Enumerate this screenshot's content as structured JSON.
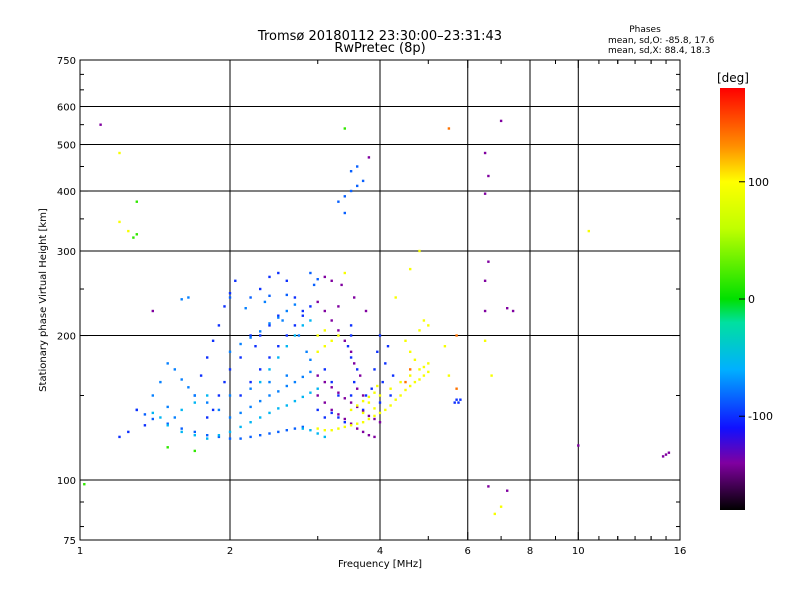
{
  "chart_data": {
    "type": "scatter",
    "title": "Tromsø 20180112 23:30:00–23:31:43",
    "subtitle": "RwPretec (8p)",
    "phases": {
      "header": "Phases",
      "line_o": "mean, sd,O: -85.8, 17.6",
      "line_x": "mean, sd,X:  88.4, 18.3"
    },
    "xlabel": "Frequency [MHz]",
    "ylabel": "Stationary phase Virtual Height [km]",
    "x_scale": "log",
    "y_scale": "log",
    "xlim": [
      1,
      16
    ],
    "ylim": [
      75,
      750
    ],
    "x_ticks": [
      1,
      2,
      4,
      6,
      8,
      10,
      16
    ],
    "x_minor": [
      3,
      5,
      7,
      9,
      12,
      14
    ],
    "y_ticks": [
      75,
      100,
      200,
      300,
      400,
      500,
      600,
      750
    ],
    "grid": true,
    "colorbar": {
      "label": "[deg]",
      "range": [
        -180,
        180
      ],
      "ticks": [
        100,
        0,
        -100
      ]
    },
    "colorscale": [
      [
        -180,
        "#000000"
      ],
      [
        -140,
        "#8000a0"
      ],
      [
        -110,
        "#1010ff"
      ],
      [
        -60,
        "#00b0ff"
      ],
      [
        -20,
        "#00e0a0"
      ],
      [
        0,
        "#00e000"
      ],
      [
        60,
        "#c0ff00"
      ],
      [
        100,
        "#ffff00"
      ],
      [
        130,
        "#ff9000"
      ],
      [
        180,
        "#ff0000"
      ]
    ],
    "series": [
      {
        "color_deg": -85,
        "points": [
          [
            2.0,
            122
          ],
          [
            2.1,
            122
          ],
          [
            2.2,
            123
          ],
          [
            2.3,
            124
          ],
          [
            2.4,
            125
          ],
          [
            2.5,
            126
          ],
          [
            2.6,
            127
          ],
          [
            2.7,
            128
          ],
          [
            2.8,
            129
          ],
          [
            1.9,
            123
          ],
          [
            1.8,
            124
          ],
          [
            1.7,
            126
          ],
          [
            1.6,
            128
          ],
          [
            1.5,
            131
          ],
          [
            1.4,
            134
          ],
          [
            1.35,
            137
          ],
          [
            1.3,
            140
          ],
          [
            2.0,
            240
          ],
          [
            2.2,
            240
          ],
          [
            2.4,
            242
          ],
          [
            2.6,
            243
          ],
          [
            2.9,
            270
          ],
          [
            3.0,
            262
          ],
          [
            2.95,
            255
          ],
          [
            3.4,
            390
          ],
          [
            3.5,
            400
          ],
          [
            3.6,
            410
          ],
          [
            3.7,
            420
          ],
          [
            3.4,
            360
          ],
          [
            3.3,
            380
          ],
          [
            3.5,
            440
          ],
          [
            3.6,
            450
          ]
        ]
      },
      {
        "color_deg": -100,
        "points": [
          [
            2.1,
            150
          ],
          [
            2.2,
            160
          ],
          [
            2.3,
            170
          ],
          [
            2.4,
            180
          ],
          [
            2.5,
            190
          ],
          [
            2.6,
            200
          ],
          [
            2.7,
            210
          ],
          [
            2.8,
            220
          ],
          [
            2.9,
            230
          ],
          [
            2.2,
            200
          ],
          [
            2.25,
            190
          ],
          [
            2.3,
            200
          ],
          [
            2.4,
            210
          ],
          [
            2.5,
            220
          ],
          [
            2.1,
            180
          ],
          [
            2.0,
            170
          ],
          [
            1.95,
            160
          ],
          [
            1.9,
            150
          ],
          [
            1.85,
            140
          ],
          [
            1.8,
            135
          ],
          [
            1.7,
            150
          ],
          [
            1.75,
            165
          ],
          [
            1.8,
            180
          ],
          [
            1.85,
            195
          ],
          [
            1.9,
            210
          ],
          [
            1.95,
            230
          ],
          [
            2.0,
            245
          ],
          [
            2.05,
            260
          ],
          [
            2.3,
            250
          ],
          [
            2.4,
            265
          ],
          [
            2.5,
            270
          ],
          [
            2.6,
            260
          ],
          [
            2.7,
            240
          ],
          [
            2.8,
            225
          ],
          [
            1.3,
            140
          ],
          [
            1.35,
            130
          ],
          [
            1.25,
            126
          ],
          [
            1.2,
            123
          ],
          [
            3.5,
            150
          ],
          [
            3.55,
            160
          ],
          [
            3.6,
            170
          ],
          [
            3.5,
            180
          ],
          [
            3.45,
            190
          ],
          [
            3.5,
            200
          ],
          [
            3.5,
            210
          ],
          [
            3.0,
            140
          ],
          [
            3.1,
            135
          ],
          [
            3.2,
            138
          ],
          [
            3.3,
            135
          ],
          [
            3.4,
            132
          ],
          [
            3.3,
            150
          ],
          [
            3.2,
            160
          ],
          [
            3.1,
            170
          ],
          [
            4.0,
            145
          ],
          [
            4.05,
            160
          ],
          [
            4.1,
            175
          ],
          [
            4.15,
            190
          ],
          [
            3.9,
            170
          ],
          [
            3.95,
            185
          ],
          [
            4.0,
            200
          ],
          [
            3.85,
            155
          ],
          [
            3.7,
            140
          ],
          [
            3.75,
            150
          ],
          [
            4.2,
            150
          ],
          [
            4.25,
            165
          ],
          [
            5.7,
            147
          ],
          [
            5.75,
            145
          ],
          [
            5.8,
            147
          ],
          [
            5.65,
            145
          ]
        ]
      },
      {
        "color_deg": -75,
        "points": [
          [
            2.0,
            135
          ],
          [
            2.1,
            138
          ],
          [
            2.2,
            142
          ],
          [
            2.3,
            146
          ],
          [
            2.4,
            150
          ],
          [
            2.5,
            153
          ],
          [
            2.6,
            157
          ],
          [
            2.7,
            160
          ],
          [
            2.8,
            164
          ],
          [
            2.9,
            168
          ],
          [
            1.9,
            140
          ],
          [
            1.8,
            145
          ],
          [
            1.7,
            150
          ],
          [
            1.65,
            156
          ],
          [
            1.6,
            162
          ],
          [
            1.55,
            170
          ],
          [
            1.5,
            175
          ],
          [
            2.0,
            185
          ],
          [
            2.1,
            192
          ],
          [
            2.2,
            198
          ],
          [
            2.3,
            204
          ],
          [
            2.4,
            212
          ],
          [
            2.5,
            218
          ],
          [
            2.6,
            225
          ],
          [
            2.7,
            232
          ],
          [
            1.6,
            238
          ],
          [
            1.65,
            240
          ],
          [
            2.15,
            228
          ],
          [
            2.35,
            235
          ],
          [
            2.55,
            215
          ],
          [
            2.75,
            200
          ],
          [
            2.85,
            185
          ],
          [
            2.9,
            178
          ],
          [
            2.0,
            150
          ],
          [
            2.2,
            155
          ],
          [
            2.4,
            160
          ],
          [
            2.6,
            165
          ],
          [
            1.4,
            150
          ],
          [
            1.45,
            160
          ],
          [
            1.5,
            142
          ],
          [
            1.55,
            135
          ]
        ]
      },
      {
        "color_deg": -55,
        "points": [
          [
            1.8,
            122
          ],
          [
            1.9,
            124
          ],
          [
            2.0,
            126
          ],
          [
            2.1,
            129
          ],
          [
            2.2,
            132
          ],
          [
            2.3,
            135
          ],
          [
            2.4,
            138
          ],
          [
            2.5,
            141
          ],
          [
            2.6,
            143
          ],
          [
            2.7,
            146
          ],
          [
            2.8,
            149
          ],
          [
            2.9,
            152
          ],
          [
            3.0,
            155
          ],
          [
            1.6,
            126
          ],
          [
            1.7,
            124
          ],
          [
            1.5,
            130
          ],
          [
            1.45,
            135
          ],
          [
            1.4,
            138
          ],
          [
            1.6,
            140
          ],
          [
            1.7,
            145
          ],
          [
            1.8,
            150
          ],
          [
            2.3,
            160
          ],
          [
            2.4,
            170
          ],
          [
            2.5,
            180
          ],
          [
            2.6,
            190
          ],
          [
            2.7,
            200
          ],
          [
            2.8,
            210
          ],
          [
            2.9,
            215
          ],
          [
            3.0,
            125
          ],
          [
            3.1,
            123
          ],
          [
            2.9,
            127
          ],
          [
            2.8,
            128
          ]
        ]
      },
      {
        "color_deg": -140,
        "points": [
          [
            3.0,
            165
          ],
          [
            3.1,
            160
          ],
          [
            3.2,
            156
          ],
          [
            3.3,
            152
          ],
          [
            3.4,
            148
          ],
          [
            3.5,
            145
          ],
          [
            3.6,
            142
          ],
          [
            3.7,
            139
          ],
          [
            3.8,
            136
          ],
          [
            3.9,
            134
          ],
          [
            4.0,
            132
          ],
          [
            3.0,
            150
          ],
          [
            3.1,
            145
          ],
          [
            3.2,
            140
          ],
          [
            3.3,
            137
          ],
          [
            3.4,
            134
          ],
          [
            3.5,
            131
          ],
          [
            3.6,
            128
          ],
          [
            3.7,
            126
          ],
          [
            3.8,
            124
          ],
          [
            3.9,
            123
          ],
          [
            3.6,
            155
          ],
          [
            3.7,
            150
          ],
          [
            3.65,
            165
          ],
          [
            3.55,
            175
          ],
          [
            3.5,
            185
          ],
          [
            3.4,
            195
          ],
          [
            3.3,
            205
          ],
          [
            3.2,
            215
          ],
          [
            3.1,
            225
          ],
          [
            3.0,
            235
          ],
          [
            3.35,
            255
          ],
          [
            3.55,
            240
          ],
          [
            3.75,
            225
          ],
          [
            3.3,
            230
          ],
          [
            3.2,
            260
          ],
          [
            3.1,
            265
          ],
          [
            6.5,
            480
          ],
          [
            6.6,
            430
          ],
          [
            6.5,
            395
          ],
          [
            6.6,
            285
          ],
          [
            6.5,
            225
          ],
          [
            7.2,
            228
          ],
          [
            7.4,
            225
          ],
          [
            6.5,
            260
          ],
          [
            10.0,
            118
          ],
          [
            15.0,
            113
          ],
          [
            14.8,
            112
          ],
          [
            15.2,
            114
          ],
          [
            6.6,
            97
          ],
          [
            7.2,
            95
          ],
          [
            1.1,
            550
          ],
          [
            1.4,
            225
          ],
          [
            3.8,
            470
          ],
          [
            7.0,
            560
          ]
        ]
      },
      {
        "color_deg": 95,
        "points": [
          [
            3.0,
            128
          ],
          [
            3.1,
            127
          ],
          [
            3.2,
            127
          ],
          [
            3.3,
            128
          ],
          [
            3.4,
            129
          ],
          [
            3.5,
            130
          ],
          [
            3.6,
            131
          ],
          [
            3.7,
            132
          ],
          [
            3.8,
            134
          ],
          [
            3.9,
            136
          ],
          [
            4.0,
            138
          ],
          [
            4.1,
            140
          ],
          [
            4.2,
            143
          ],
          [
            4.3,
            147
          ],
          [
            4.4,
            150
          ],
          [
            4.5,
            154
          ],
          [
            4.6,
            157
          ],
          [
            4.7,
            160
          ],
          [
            4.8,
            162
          ],
          [
            4.9,
            165
          ],
          [
            5.0,
            168
          ],
          [
            3.5,
            140
          ],
          [
            3.6,
            143
          ],
          [
            3.7,
            146
          ],
          [
            3.8,
            149
          ],
          [
            3.9,
            152
          ],
          [
            3.95,
            157
          ],
          [
            3.8,
            145
          ],
          [
            3.7,
            138
          ],
          [
            3.9,
            141
          ],
          [
            4.0,
            150
          ],
          [
            4.2,
            155
          ],
          [
            4.4,
            160
          ],
          [
            4.6,
            165
          ],
          [
            4.8,
            170
          ],
          [
            4.9,
            172
          ],
          [
            5.0,
            175
          ],
          [
            3.0,
            185
          ],
          [
            3.1,
            190
          ],
          [
            3.2,
            195
          ],
          [
            3.3,
            200
          ],
          [
            3.1,
            205
          ],
          [
            3.0,
            200
          ],
          [
            4.5,
            195
          ],
          [
            4.6,
            185
          ],
          [
            4.7,
            178
          ],
          [
            4.8,
            205
          ],
          [
            4.9,
            215
          ],
          [
            5.0,
            210
          ],
          [
            4.3,
            240
          ],
          [
            4.6,
            275
          ],
          [
            4.8,
            300
          ],
          [
            3.4,
            270
          ],
          [
            5.4,
            190
          ],
          [
            5.5,
            165
          ],
          [
            6.5,
            195
          ],
          [
            6.7,
            165
          ],
          [
            7.0,
            88
          ],
          [
            6.8,
            85
          ],
          [
            1.2,
            480
          ],
          [
            1.25,
            330
          ],
          [
            1.2,
            345
          ],
          [
            10.5,
            330
          ]
        ]
      },
      {
        "color_deg": 15,
        "points": [
          [
            1.3,
            380
          ],
          [
            1.28,
            320
          ],
          [
            1.3,
            325
          ],
          [
            3.4,
            540
          ],
          [
            1.5,
            117
          ],
          [
            1.7,
            115
          ],
          [
            1.02,
            98
          ]
        ]
      },
      {
        "color_deg": 140,
        "points": [
          [
            5.5,
            540
          ],
          [
            4.5,
            160
          ],
          [
            4.6,
            170
          ],
          [
            5.7,
            200
          ],
          [
            5.7,
            155
          ]
        ]
      }
    ]
  }
}
